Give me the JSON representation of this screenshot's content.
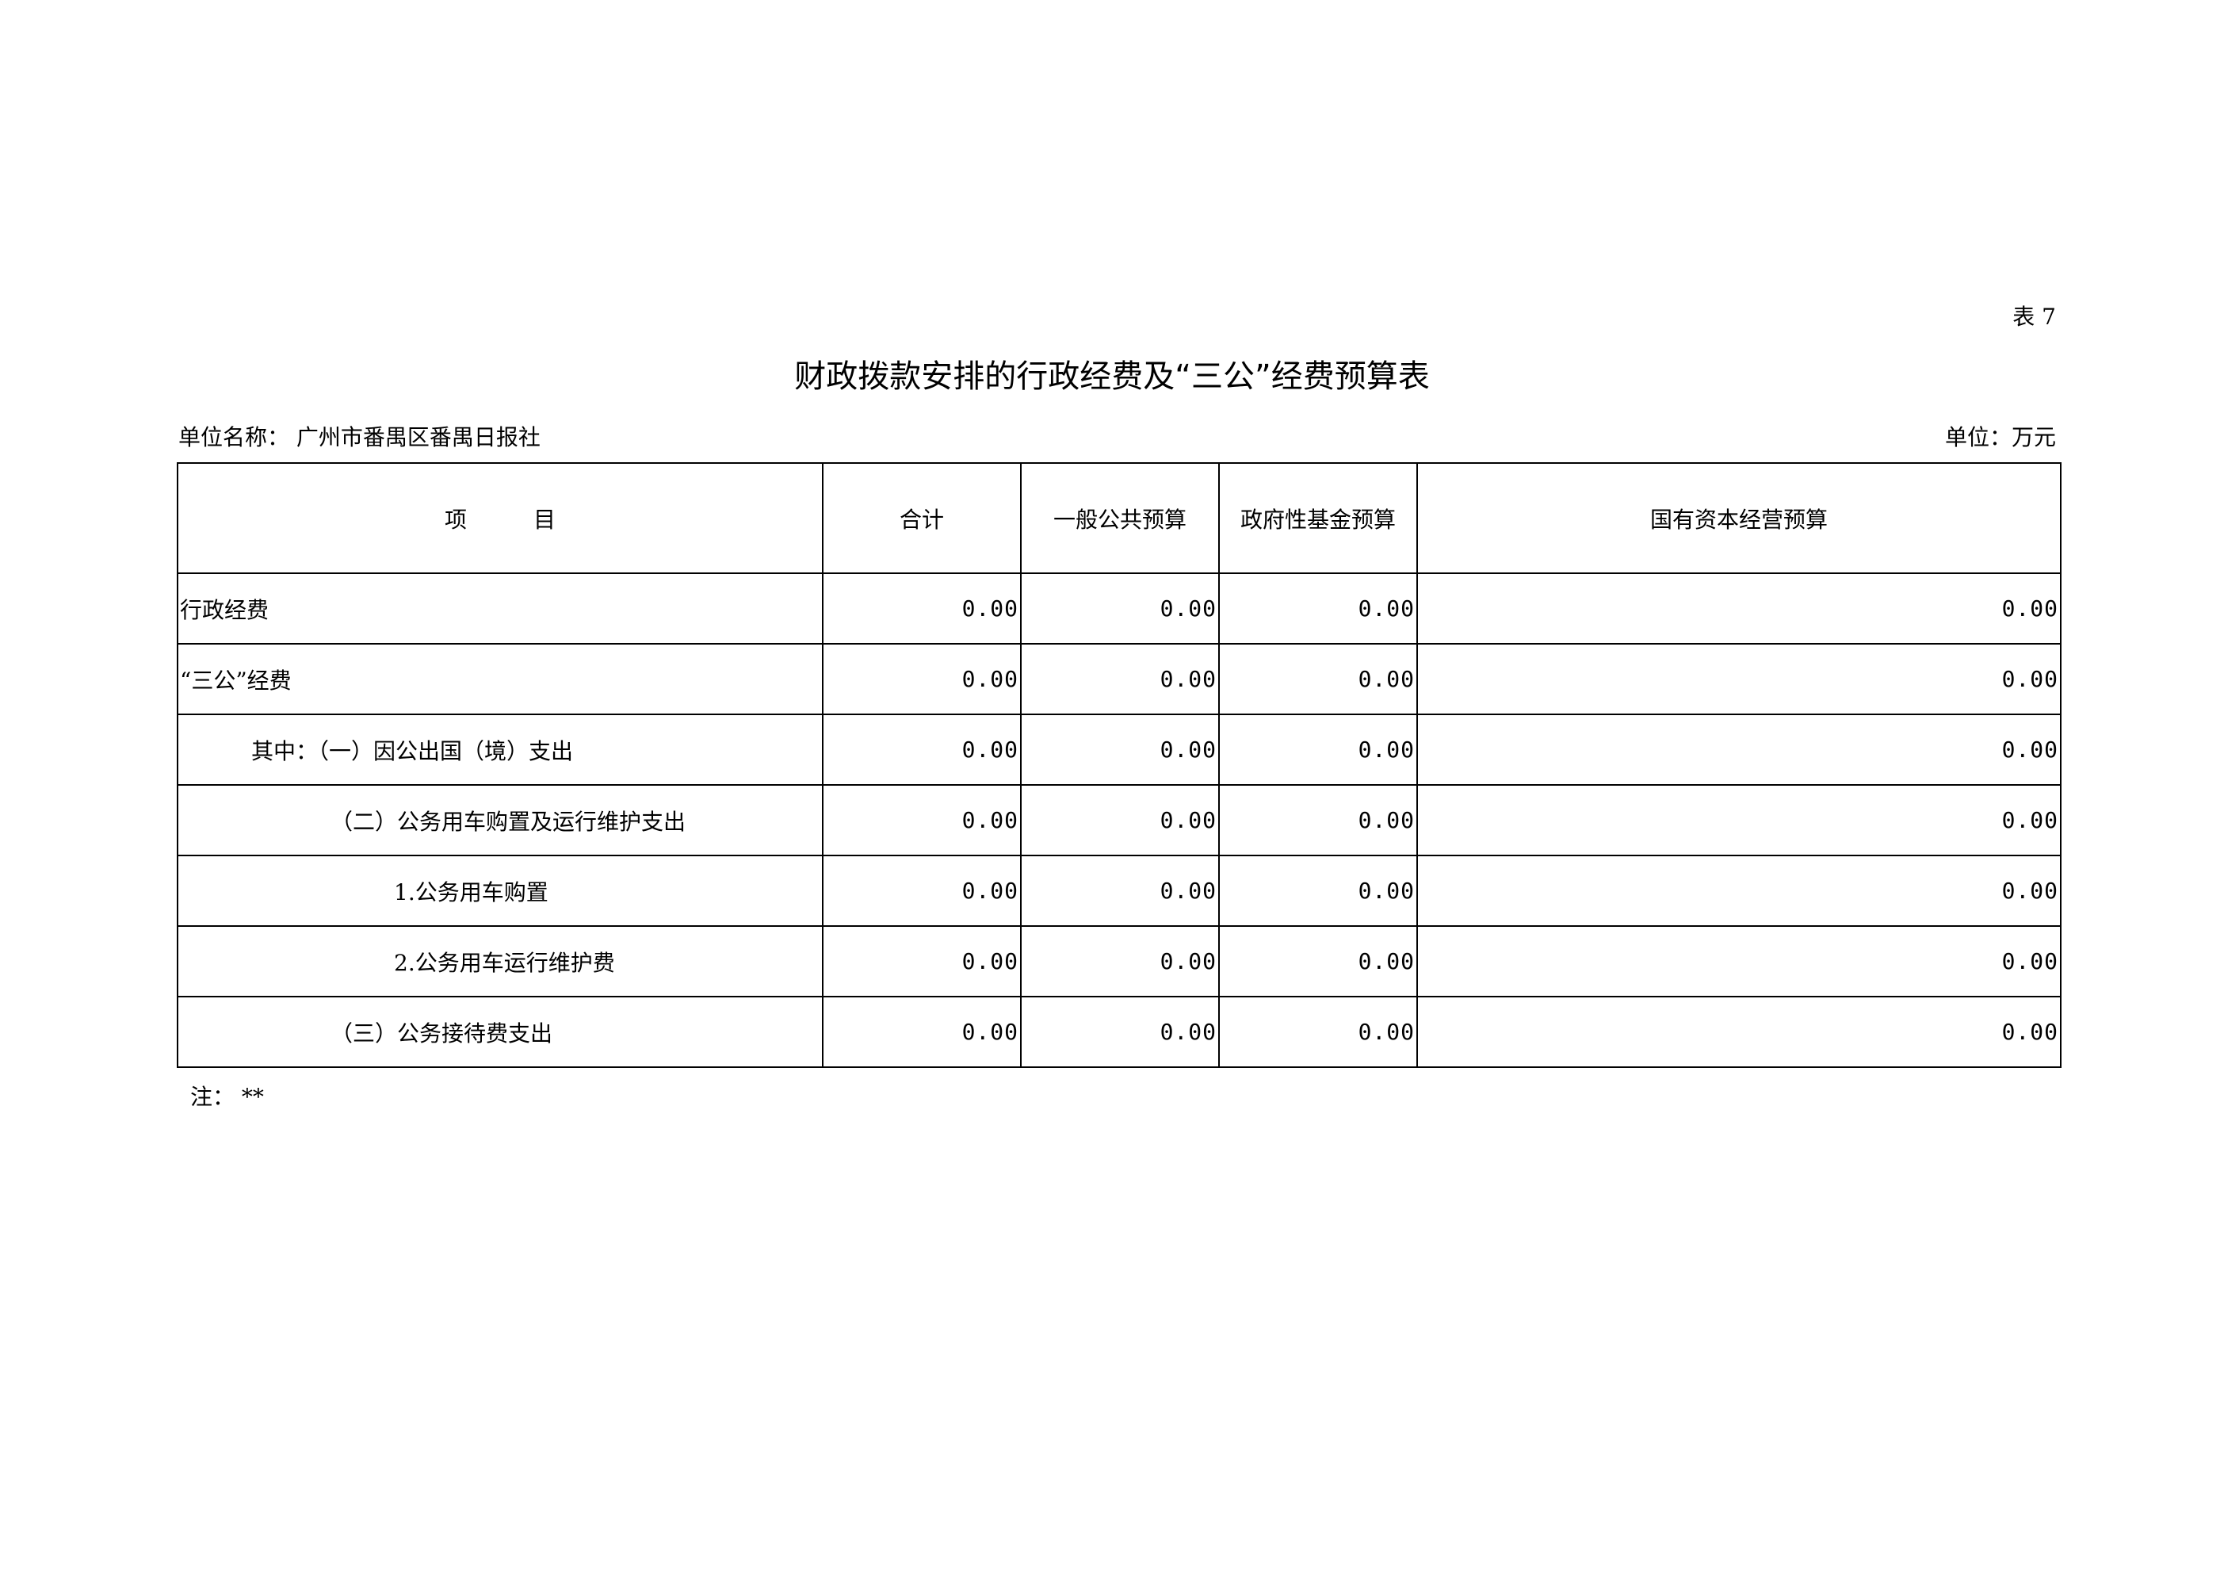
{
  "table_no": "表 7",
  "title": "财政拨款安排的行政经费及“三公”经费预算表",
  "unit_name_label": "单位名称：",
  "unit_name": "广州市番禺区番禺日报社",
  "unit": "单位：万元",
  "headers": [
    "项　　　目",
    "合计",
    "一般公共预算",
    "政府性基金预算",
    "国有资本经营预算"
  ],
  "rows": [
    {
      "item": "行政经费",
      "values": [
        "0.00",
        "0.00",
        "0.00",
        "0.00"
      ]
    },
    {
      "item": "“三公”经费",
      "values": [
        "0.00",
        "0.00",
        "0.00",
        "0.00"
      ]
    },
    {
      "item": "其中：（一）因公出国（境）支出",
      "values": [
        "0.00",
        "0.00",
        "0.00",
        "0.00"
      ]
    },
    {
      "item": "（二）公务用车购置及运行维护支出",
      "values": [
        "0.00",
        "0.00",
        "0.00",
        "0.00"
      ]
    },
    {
      "item": "1.公务用车购置",
      "values": [
        "0.00",
        "0.00",
        "0.00",
        "0.00"
      ]
    },
    {
      "item": "2.公务用车运行维护费",
      "values": [
        "0.00",
        "0.00",
        "0.00",
        "0.00"
      ]
    },
    {
      "item": "（三）公务接待费支出",
      "values": [
        "0.00",
        "0.00",
        "0.00",
        "0.00"
      ]
    }
  ],
  "note": "注：  **"
}
